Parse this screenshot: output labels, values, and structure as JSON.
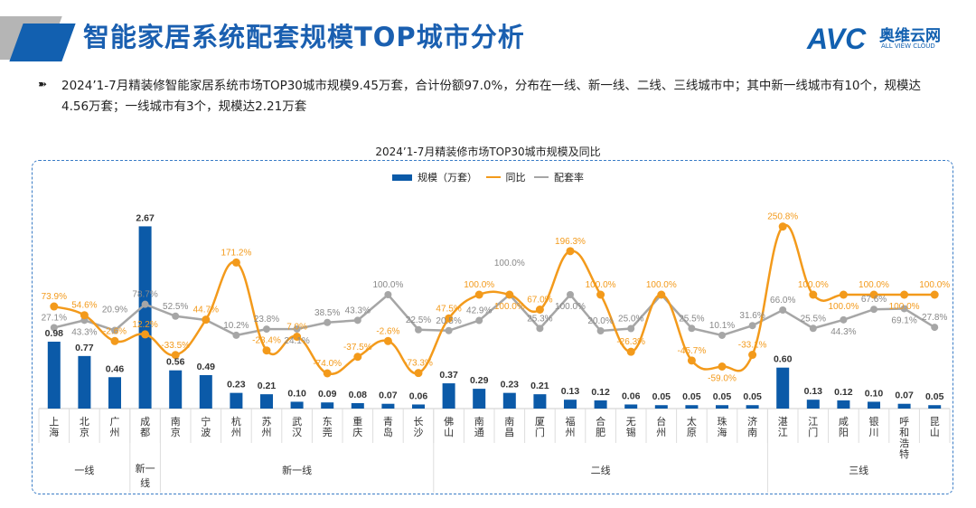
{
  "header": {
    "title": "智能家居系统配套规模TOP城市分析",
    "logo_text": "AVC",
    "logo_cn": "奥维云网",
    "logo_en": "ALL VIEW CLOUD"
  },
  "summary": "2024’1-7月精装修智能家居系统市场TOP30城市规模9.45万套，合计份额97.0%，分布在一线、新一线、二线、三线城市中；其中新一线城市有10个，规模达4.56万套；一线城市有3个，规模达2.21万套",
  "colors": {
    "bar": "#0b5aa8",
    "yoy": "#f39a1b",
    "rate": "#a6a6a6"
  },
  "chart_data": {
    "type": "bar+line",
    "title": "2024’1-7月精装修市场TOP30城市规模及同比",
    "legend": [
      "规模（万套）",
      "同比",
      "配套率"
    ],
    "legend_position": "top",
    "categories": [
      "上海",
      "北京",
      "广州",
      "成都",
      "南京",
      "宁波",
      "杭州",
      "苏州",
      "武汉",
      "东莞",
      "重庆",
      "青岛",
      "长沙",
      "佛山",
      "南通",
      "南昌",
      "厦门",
      "福州",
      "合肥",
      "无锡",
      "台州",
      "太原",
      "珠海",
      "济南",
      "湛江",
      "江门",
      "咸阳",
      "银川",
      "呼和浩特",
      "昆山"
    ],
    "groups": [
      {
        "label": "一线",
        "count": 3
      },
      {
        "label": "新一线",
        "count": 1
      },
      {
        "label": "新一线",
        "count": 9
      },
      {
        "label": "二线",
        "count": 11
      },
      {
        "label": "三线",
        "count": 6
      }
    ],
    "series": [
      {
        "name": "规模（万套）",
        "type": "bar",
        "values": [
          0.98,
          0.77,
          0.46,
          2.67,
          0.56,
          0.49,
          0.23,
          0.21,
          0.1,
          0.09,
          0.08,
          0.07,
          0.06,
          0.37,
          0.29,
          0.23,
          0.21,
          0.13,
          0.12,
          0.06,
          0.05,
          0.05,
          0.05,
          0.05,
          0.6,
          0.13,
          0.12,
          0.1,
          0.07,
          0.05
        ]
      },
      {
        "name": "同比",
        "type": "line",
        "unit": "%",
        "values": [
          73.9,
          54.6,
          -2.6,
          12.2,
          -33.5,
          44.7,
          171.2,
          -23.4,
          7.0,
          -74.0,
          -37.5,
          -2.6,
          -73.3,
          47.5,
          100.0,
          100.0,
          67.0,
          196.3,
          100.0,
          -26.3,
          100.0,
          -45.7,
          -59.0,
          -33.1,
          250.8,
          100.0,
          100.0,
          100.0,
          100.0,
          100.0
        ]
      },
      {
        "name": "配套率",
        "type": "line",
        "unit": "%",
        "values": [
          27.1,
          43.3,
          20.9,
          78.7,
          52.5,
          44.0,
          10.2,
          23.8,
          24.1,
          38.5,
          43.3,
          100.0,
          22.5,
          20.5,
          42.9,
          100.0,
          25.3,
          100.0,
          20.0,
          25.0,
          100.0,
          25.5,
          10.1,
          31.6,
          66.0,
          25.5,
          44.3,
          67.6,
          69.1,
          27.8
        ],
        "labels_shown": [
          true,
          true,
          true,
          true,
          true,
          false,
          true,
          true,
          true,
          true,
          true,
          true,
          true,
          true,
          true,
          true,
          true,
          true,
          true,
          true,
          false,
          true,
          true,
          true,
          true,
          true,
          true,
          true,
          true,
          true
        ]
      }
    ]
  }
}
